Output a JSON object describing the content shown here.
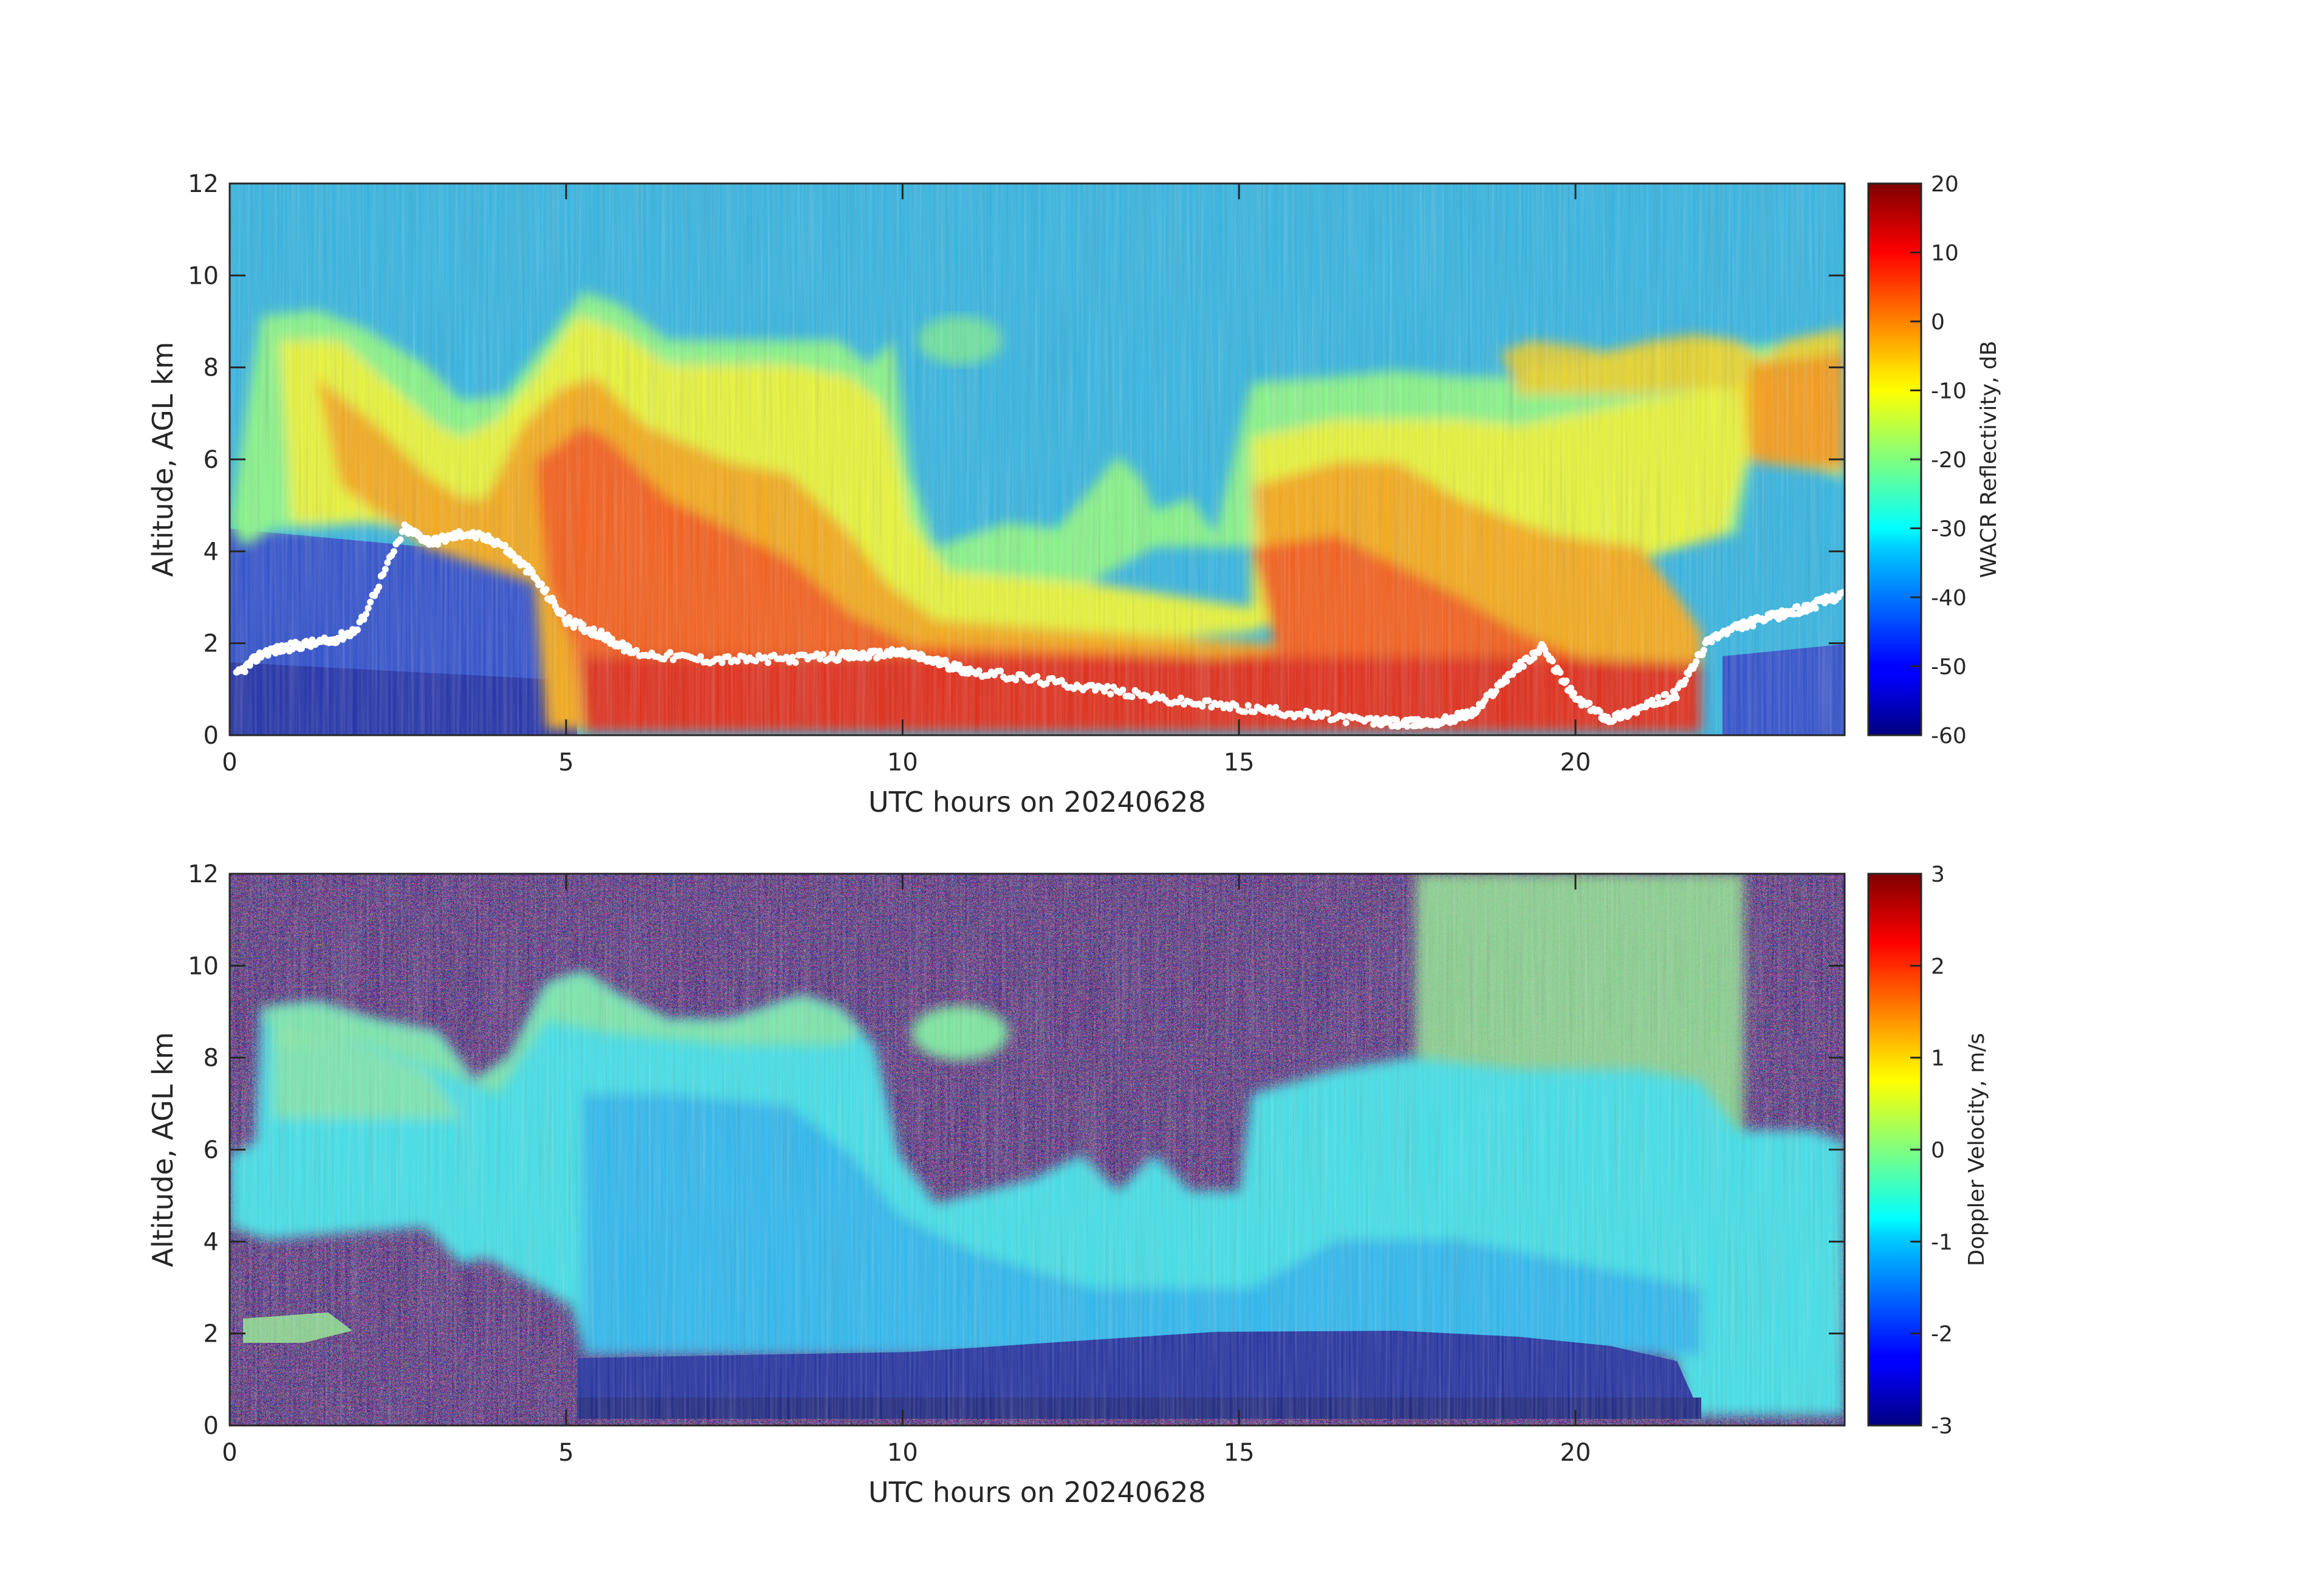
{
  "chart_data": [
    {
      "type": "heatmap",
      "xlabel": "UTC hours on 20240628",
      "ylabel": "Altitude, AGL km",
      "xlim": [
        0,
        24
      ],
      "ylim": [
        0,
        12
      ],
      "xticks": [
        "0",
        "5",
        "10",
        "15",
        "20"
      ],
      "yticks": [
        "0",
        "2",
        "4",
        "6",
        "8",
        "10",
        "12"
      ],
      "colormap": "jet",
      "colorbar": {
        "label": "WACR Reflectivity, dB",
        "range": [
          -60,
          20
        ],
        "ticks": [
          "-60",
          "-50",
          "-40",
          "-30",
          "-20",
          "-10",
          "0",
          "10",
          "20"
        ]
      },
      "cloud_base_overlay": {
        "color": "#ffffff",
        "points": [
          [
            0.1,
            1.3
          ],
          [
            0.5,
            1.8
          ],
          [
            1.0,
            1.95
          ],
          [
            1.5,
            2.05
          ],
          [
            1.9,
            2.3
          ],
          [
            2.6,
            4.5
          ],
          [
            3.0,
            4.2
          ],
          [
            3.5,
            4.4
          ],
          [
            4.0,
            4.2
          ],
          [
            4.5,
            3.5
          ],
          [
            5.0,
            2.5
          ],
          [
            5.5,
            2.2
          ],
          [
            6.0,
            1.8
          ],
          [
            7.0,
            1.65
          ],
          [
            8.0,
            1.65
          ],
          [
            9.0,
            1.7
          ],
          [
            9.5,
            1.75
          ],
          [
            10.0,
            1.8
          ],
          [
            10.5,
            1.6
          ],
          [
            11.0,
            1.4
          ],
          [
            12.0,
            1.2
          ],
          [
            13.0,
            1.0
          ],
          [
            14.0,
            0.75
          ],
          [
            15.0,
            0.6
          ],
          [
            16.0,
            0.45
          ],
          [
            17.0,
            0.3
          ],
          [
            17.5,
            0.25
          ],
          [
            18.0,
            0.3
          ],
          [
            18.5,
            0.5
          ],
          [
            19.0,
            1.3
          ],
          [
            19.5,
            1.9
          ],
          [
            20.0,
            0.8
          ],
          [
            20.5,
            0.35
          ],
          [
            21.0,
            0.6
          ],
          [
            21.5,
            0.9
          ],
          [
            22.0,
            2.1
          ],
          [
            22.5,
            2.4
          ],
          [
            23.0,
            2.6
          ],
          [
            23.5,
            2.8
          ],
          [
            24.0,
            3.1
          ]
        ]
      }
    },
    {
      "type": "heatmap",
      "xlabel": "UTC hours on 20240628",
      "ylabel": "Altitude, AGL km",
      "xlim": [
        0,
        24
      ],
      "ylim": [
        0,
        12
      ],
      "xticks": [
        "0",
        "5",
        "10",
        "15",
        "20"
      ],
      "yticks": [
        "0",
        "2",
        "4",
        "6",
        "8",
        "10",
        "12"
      ],
      "colormap": "jet",
      "colorbar": {
        "label": "Doppler Velocity, m/s",
        "range": [
          -3,
          3
        ],
        "ticks": [
          "-3",
          "-2",
          "-1",
          "0",
          "1",
          "2",
          "3"
        ]
      }
    }
  ]
}
